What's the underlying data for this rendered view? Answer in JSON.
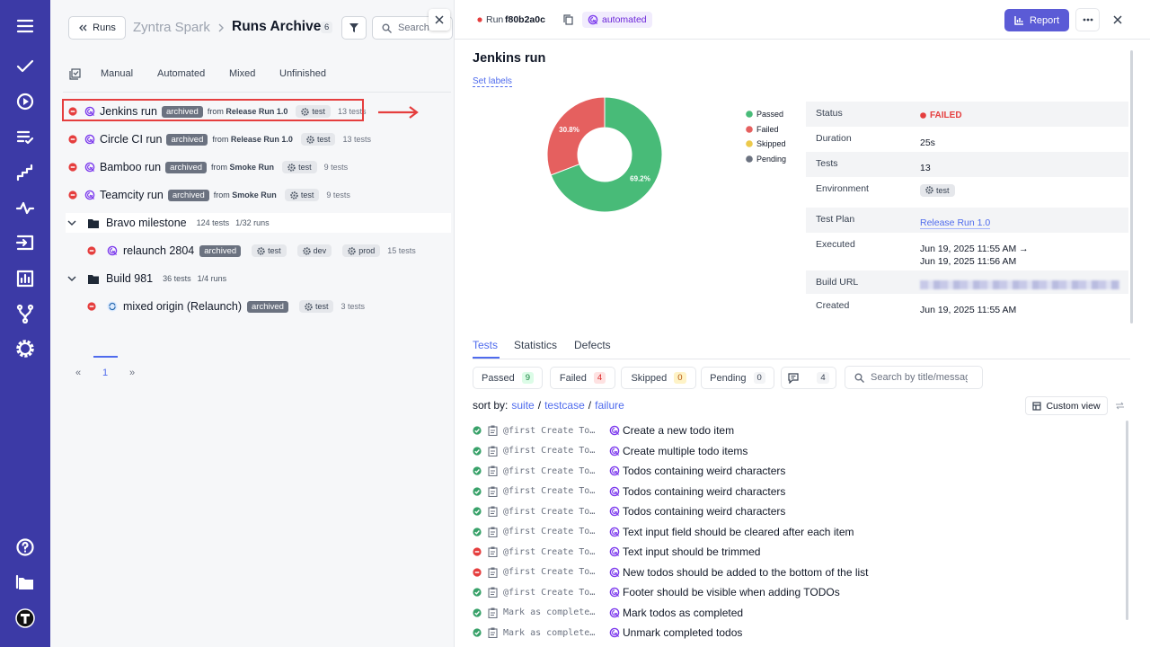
{
  "runs_panel": {
    "back_button": "Runs",
    "project": "Zyntra Spark",
    "title": "Runs Archive",
    "count": 6,
    "search_placeholder": "Search",
    "tabs": [
      "Manual",
      "Automated",
      "Mixed",
      "Unfinished"
    ],
    "runs": [
      {
        "name": "Jenkins run",
        "badge": "archived",
        "from_prefix": "from",
        "from": "Release Run 1.0",
        "labels": [
          "test"
        ],
        "tests": "13 tests"
      },
      {
        "name": "Circle CI run",
        "badge": "archived",
        "from_prefix": "from",
        "from": "Release Run 1.0",
        "labels": [
          "test"
        ],
        "tests": "13 tests"
      },
      {
        "name": "Bamboo run",
        "badge": "archived",
        "from_prefix": "from",
        "from": "Smoke Run",
        "labels": [
          "test"
        ],
        "tests": "9 tests"
      },
      {
        "name": "Teamcity run",
        "badge": "archived",
        "from_prefix": "from",
        "from": "Smoke Run",
        "labels": [
          "test"
        ],
        "tests": "9 tests"
      }
    ],
    "groups": [
      {
        "name": "Bravo milestone",
        "tests": "124 tests",
        "runs": "1/32 runs",
        "children": [
          {
            "name": "relaunch 2804",
            "badge": "archived",
            "labels": [
              "test",
              "dev",
              "prod"
            ],
            "tests": "15 tests",
            "icon": "automated"
          }
        ]
      },
      {
        "name": "Build 981",
        "tests": "36 tests",
        "runs": "1/4 runs",
        "children": [
          {
            "name": "mixed origin (Relaunch)",
            "badge": "archived",
            "labels": [
              "test"
            ],
            "tests": "3 tests",
            "icon": "mixed"
          }
        ]
      }
    ],
    "pagination": {
      "prev": "«",
      "pages": [
        1
      ],
      "next": "»"
    }
  },
  "detail": {
    "run_label": "Run",
    "run_id": "f80b2a0c",
    "kind": "automated",
    "report_button": "Report",
    "title": "Jenkins run",
    "set_labels": "Set labels",
    "info": [
      {
        "label": "Status",
        "value": "FAILED"
      },
      {
        "label": "Duration",
        "value": "25s"
      },
      {
        "label": "Tests",
        "value": 13
      },
      {
        "label": "Environment",
        "value": "test"
      },
      {
        "label": "Test Plan",
        "value": "Release Run 1.0"
      },
      {
        "label": "Executed",
        "value": "Jun 19, 2025 11:55 AM →",
        "value2": "Jun 19, 2025 11:56 AM"
      },
      {
        "label": "Build URL"
      },
      {
        "label": "Created",
        "value": "Jun 19, 2025 11:55 AM"
      }
    ],
    "tabs": [
      "Tests",
      "Statistics",
      "Defects"
    ],
    "filters": [
      {
        "label": "Passed",
        "count": 9
      },
      {
        "label": "Failed",
        "count": 4
      },
      {
        "label": "Skipped",
        "count": 0
      },
      {
        "label": "Pending",
        "count": 0
      },
      {
        "count": 4
      }
    ],
    "search_placeholder": "Search by title/message",
    "sort": {
      "label": "sort by:",
      "options": [
        "suite",
        "testcase",
        "failure"
      ],
      "separator": "/"
    },
    "custom_view": "Custom view",
    "tests": [
      {
        "status": "passed",
        "code": "@first Create To…",
        "title": "Create a new todo item"
      },
      {
        "status": "passed",
        "code": "@first Create To…",
        "title": "Create multiple todo items"
      },
      {
        "status": "passed",
        "code": "@first Create To…",
        "title": "Todos containing weird characters"
      },
      {
        "status": "passed",
        "code": "@first Create To…",
        "title": "Todos containing weird characters"
      },
      {
        "status": "passed",
        "code": "@first Create To…",
        "title": "Todos containing weird characters"
      },
      {
        "status": "passed",
        "code": "@first Create To…",
        "title": "Text input field should be cleared after each item"
      },
      {
        "status": "failed",
        "code": "@first Create To…",
        "title": "Text input should be trimmed"
      },
      {
        "status": "failed",
        "code": "@first Create To…",
        "title": "New todos should be added to the bottom of the list"
      },
      {
        "status": "passed",
        "code": "@first Create To…",
        "title": "Footer should be visible when adding TODOs"
      },
      {
        "status": "passed",
        "code": "Mark as complete…",
        "title": "Mark todos as completed"
      },
      {
        "status": "passed",
        "code": "Mark as complete…",
        "title": "Unmark completed todos"
      }
    ]
  },
  "chart_data": {
    "type": "pie",
    "labels": [
      "Passed",
      "Failed",
      "Skipped",
      "Pending"
    ],
    "values": [
      69.2,
      30.8,
      0,
      0
    ],
    "value_labels": [
      "69.2%",
      "30.8%",
      null,
      null
    ],
    "colors": [
      "#48bb78",
      "#e5605f",
      "#ecc94b",
      "#6b7280"
    ]
  }
}
